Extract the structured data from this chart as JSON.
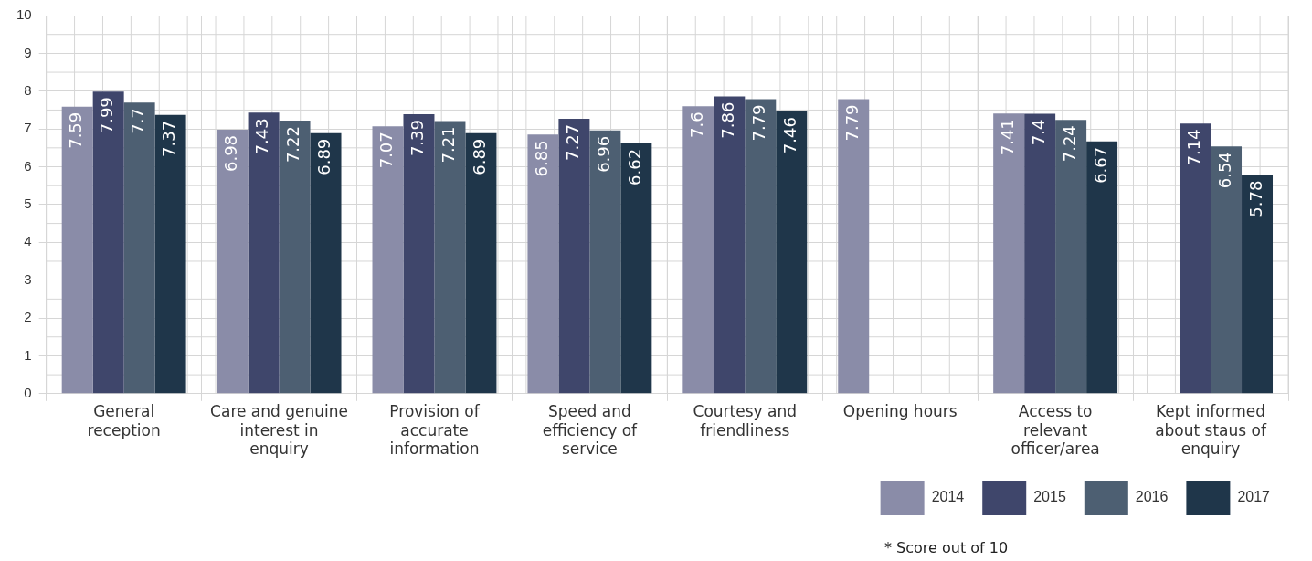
{
  "chart_data": {
    "type": "bar",
    "categories": [
      "General reception",
      "Care and genuine interest in enquiry",
      "Provision of accurate information",
      "Speed and efficiency of service",
      "Courtesy and friendliness",
      "Opening hours",
      "Access to relevant officer/area",
      "Kept informed about staus of enquiry"
    ],
    "series": [
      {
        "name": "2014",
        "color": "#8a8ca8",
        "values": [
          7.59,
          6.98,
          7.07,
          6.85,
          7.6,
          7.79,
          7.41,
          null
        ]
      },
      {
        "name": "2015",
        "color": "#3f466b",
        "values": [
          7.99,
          7.43,
          7.39,
          7.27,
          7.86,
          null,
          7.4,
          7.14
        ]
      },
      {
        "name": "2016",
        "color": "#4d5f72",
        "values": [
          7.7,
          7.22,
          7.21,
          6.96,
          7.79,
          null,
          7.24,
          6.54
        ]
      },
      {
        "name": "2017",
        "color": "#1f364a",
        "values": [
          7.37,
          6.89,
          6.89,
          6.62,
          7.46,
          null,
          6.67,
          5.78
        ]
      }
    ],
    "ylim": [
      0,
      10
    ],
    "yticks": [
      0,
      1,
      2,
      3,
      4,
      5,
      6,
      7,
      8,
      9,
      10
    ],
    "grid": true,
    "legend": "bottom right",
    "data_labels": true,
    "annotations": [
      "* Score out of 10"
    ]
  }
}
